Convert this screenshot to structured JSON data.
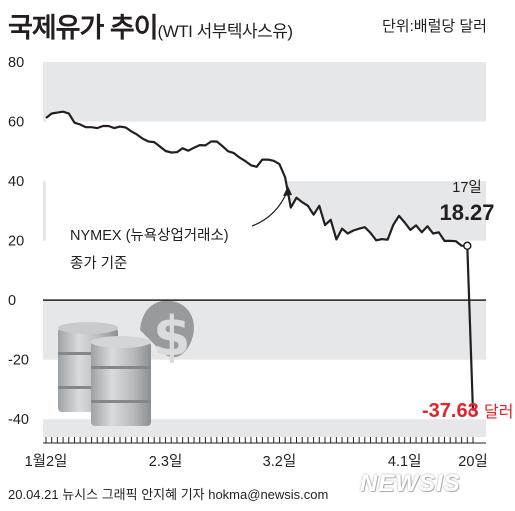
{
  "header": {
    "title": "국제유가 추이",
    "subtitle": "(WTI 서부텍사스유)",
    "unit": "단위:배럴당 달러"
  },
  "chart_data": {
    "type": "line",
    "series_label": "NYMEX (뉴욕상업거래소)",
    "series_label_2": "종가 기준",
    "ylim": [
      -50,
      80
    ],
    "yticks": [
      {
        "v": 80,
        "label": "80"
      },
      {
        "v": 60,
        "label": "60"
      },
      {
        "v": 40,
        "label": "40"
      },
      {
        "v": 20,
        "label": "20"
      },
      {
        "v": 0,
        "label": "0"
      },
      {
        "v": -20,
        "label": "-20"
      },
      {
        "v": -40,
        "label": "-40"
      }
    ],
    "xticks": [
      {
        "i": 0,
        "label": "1월2일"
      },
      {
        "i": 21,
        "label": "2.3일"
      },
      {
        "i": 41,
        "label": "3.2일"
      },
      {
        "i": 63,
        "label": "4.1일"
      },
      {
        "i": 75,
        "label": "20일"
      }
    ],
    "values": [
      61.2,
      62.7,
      63.0,
      63.3,
      62.7,
      59.6,
      59.0,
      58.1,
      58.1,
      57.8,
      58.5,
      58.5,
      57.8,
      58.3,
      58.0,
      56.7,
      55.6,
      54.2,
      53.3,
      53.1,
      51.6,
      50.1,
      49.6,
      49.7,
      51.0,
      50.2,
      51.2,
      52.1,
      52.0,
      53.3,
      53.3,
      51.7,
      50.0,
      49.4,
      47.9,
      46.7,
      45.3,
      44.8,
      47.2,
      47.2,
      46.8,
      45.7,
      41.3,
      31.1,
      34.4,
      32.9,
      31.7,
      28.7,
      31.7,
      25.2,
      27.0,
      20.4,
      24.0,
      22.4,
      23.4,
      24.0,
      24.5,
      22.6,
      20.1,
      20.5,
      20.3,
      25.3,
      28.3,
      26.1,
      23.6,
      25.1,
      22.8,
      24.8,
      22.4,
      22.8,
      19.9,
      19.9,
      19.8,
      18.3,
      18.27,
      -37.63
    ],
    "annotations": [
      {
        "date": "17일",
        "value": "18.27"
      },
      {
        "value": "-37.63",
        "unit": "달러"
      }
    ],
    "colors": {
      "line": "#231f20",
      "marker": "#e8202a",
      "negative_label": "#e8202a",
      "band": "#e6e7e8"
    }
  },
  "footer": {
    "credit": "20.04.21  뉴시스 그래픽 안지혜 기자  hokma@newsis.com",
    "logo": "NEWSIS"
  }
}
